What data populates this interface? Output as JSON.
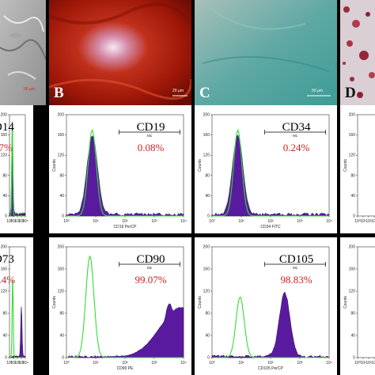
{
  "figure": {
    "photos": [
      {
        "id": "A",
        "label": "",
        "scalebar": "50 μm"
      },
      {
        "id": "B",
        "label": "B",
        "scalebar": "20 μm"
      },
      {
        "id": "C",
        "label": "C",
        "scalebar": "50 μm"
      },
      {
        "id": "D",
        "label": "D",
        "scalebar": ""
      }
    ],
    "flow_panels": [
      {
        "id": "cd14",
        "marker": "D14",
        "percent": "07%",
        "xlabel": "",
        "gate": "",
        "visible": "partial-left"
      },
      {
        "id": "cd19",
        "marker": "CD19",
        "percent": "0.08%",
        "xlabel": "CD19 PerCP",
        "gate": "M1"
      },
      {
        "id": "cd34",
        "marker": "CD34",
        "percent": "0.24%",
        "xlabel": "CD34 FITC",
        "gate": "M1"
      },
      {
        "id": "extra-top",
        "marker": "",
        "percent": "",
        "xlabel": "",
        "gate": ""
      },
      {
        "id": "cd73",
        "marker": "D73",
        "percent": "9.4%",
        "xlabel": "",
        "gate": ""
      },
      {
        "id": "cd90",
        "marker": "CD90",
        "percent": "99.07%",
        "xlabel": "CD90 PE",
        "gate": "M1"
      },
      {
        "id": "cd105",
        "marker": "CD105",
        "percent": "98.83%",
        "xlabel": "CD105 PerCP",
        "gate": "M1"
      },
      {
        "id": "extra-bottom",
        "marker": "",
        "percent": "",
        "xlabel": "",
        "gate": ""
      }
    ],
    "axis": {
      "ylabel": "Counts",
      "yticks": [
        "0",
        "40",
        "80",
        "120",
        "160",
        "200"
      ],
      "xticks": [
        "10⁰",
        "10¹",
        "10²",
        "10³",
        "10⁴"
      ]
    },
    "colors": {
      "isotype": "#33dd33",
      "stained": "#5a1aa0",
      "percent": "#cc2222"
    }
  }
}
